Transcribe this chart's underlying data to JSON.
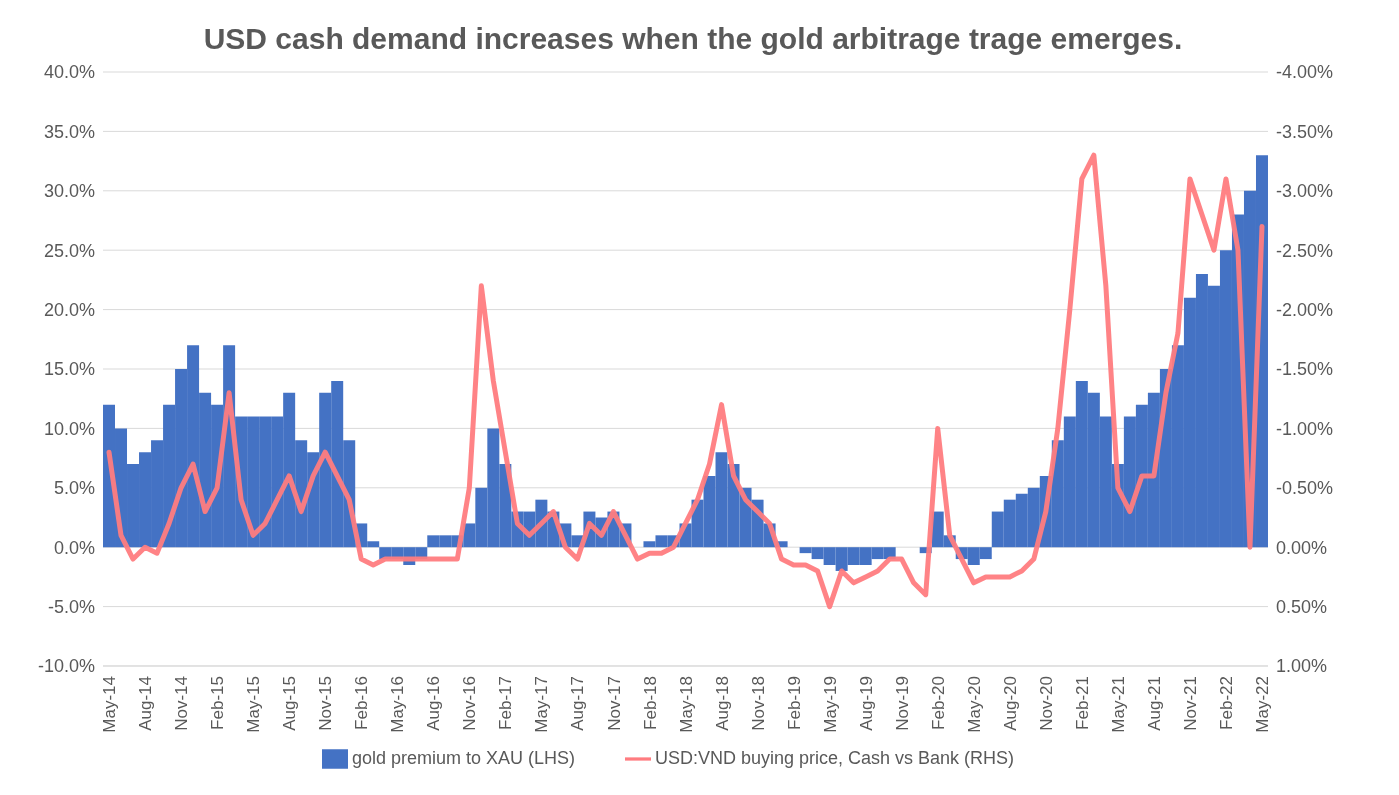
{
  "chart_data": {
    "type": "bar",
    "title": "USD cash demand increases when the gold arbitrage trage emerges.",
    "categories": [
      "May-14",
      null,
      null,
      "Aug-14",
      null,
      null,
      "Nov-14",
      null,
      null,
      "Feb-15",
      null,
      null,
      "May-15",
      null,
      null,
      "Aug-15",
      null,
      null,
      "Nov-15",
      null,
      null,
      "Feb-16",
      null,
      null,
      "May-16",
      null,
      null,
      "Aug-16",
      null,
      null,
      "Nov-16",
      null,
      null,
      "Feb-17",
      null,
      null,
      "May-17",
      null,
      null,
      "Aug-17",
      null,
      null,
      "Nov-17",
      null,
      null,
      "Feb-18",
      null,
      null,
      "May-18",
      null,
      null,
      "Aug-18",
      null,
      null,
      "Nov-18",
      null,
      null,
      "Feb-19",
      null,
      null,
      "May-19",
      null,
      null,
      "Aug-19",
      null,
      null,
      "Nov-19",
      null,
      null,
      "Feb-20",
      null,
      null,
      "May-20",
      null,
      null,
      "Aug-20",
      null,
      null,
      "Nov-20",
      null,
      null,
      "Feb-21",
      null,
      null,
      "May-21",
      null,
      null,
      "Aug-21",
      null,
      null,
      "Nov-21",
      null,
      null,
      "Feb-22",
      null,
      null,
      "May-22"
    ],
    "series": [
      {
        "name": "gold premium to XAU (LHS)",
        "color": "#4472c4",
        "values": [
          12,
          10,
          7,
          8,
          9,
          12,
          15,
          17,
          13,
          12,
          17,
          11,
          11,
          11,
          11,
          13,
          9,
          8,
          13,
          14,
          9,
          2,
          0.5,
          -1,
          -1,
          -1.5,
          -1,
          1,
          1,
          1,
          2,
          5,
          10,
          7,
          3,
          3,
          4,
          3,
          2,
          1,
          3,
          2.5,
          3,
          2,
          0,
          0.5,
          1,
          1,
          2,
          4,
          6,
          8,
          7,
          5,
          4,
          2,
          0.5,
          0,
          -0.5,
          -1,
          -1.5,
          -2,
          -1.5,
          -1.5,
          -1,
          -1,
          0,
          0,
          -0.5,
          3,
          1,
          -1,
          -1.5,
          -1,
          3,
          4,
          4.5,
          5,
          6,
          9,
          11,
          14,
          13,
          11,
          7,
          11,
          12,
          13,
          15,
          17,
          21,
          23,
          22,
          25,
          28,
          30,
          33
        ]
      },
      {
        "name": "USD:VND buying price, Cash vs Bank (RHS)",
        "type": "line",
        "axis": "y2",
        "color": "#ff7c80",
        "values": [
          -0.8,
          -0.1,
          0.1,
          0,
          0.05,
          -0.2,
          -0.5,
          -0.7,
          -0.3,
          -0.5,
          -1.3,
          -0.4,
          -0.1,
          -0.2,
          -0.4,
          -0.6,
          -0.3,
          -0.6,
          -0.8,
          -0.6,
          -0.4,
          0.1,
          0.15,
          0.1,
          0.1,
          0.1,
          0.1,
          0.1,
          0.1,
          0.1,
          -0.5,
          -2.2,
          -1.4,
          -0.8,
          -0.2,
          -0.1,
          -0.2,
          -0.3,
          0,
          0.1,
          -0.2,
          -0.1,
          -0.3,
          -0.1,
          0.1,
          0.05,
          0.05,
          0,
          -0.2,
          -0.4,
          -0.7,
          -1.2,
          -0.6,
          -0.4,
          -0.3,
          -0.2,
          0.1,
          0.15,
          0.15,
          0.2,
          0.5,
          0.2,
          0.3,
          0.25,
          0.2,
          0.1,
          0.1,
          0.3,
          0.4,
          -1,
          -0.1,
          0.1,
          0.3,
          0.25,
          0.25,
          0.25,
          0.2,
          0.1,
          -0.3,
          -1,
          -2,
          -3.1,
          -3.3,
          -2.2,
          -0.5,
          -0.3,
          -0.6,
          -0.6,
          -1.3,
          -1.8,
          -3.1,
          -2.8,
          -2.5,
          -3.1,
          -2.5,
          0,
          -2.7
        ]
      }
    ],
    "ylim": [
      -10,
      40
    ],
    "yticks": [
      {
        "value": -10,
        "label": "-10.0%"
      },
      {
        "value": -5,
        "label": "-5.0%"
      },
      {
        "value": 0,
        "label": "0.0%"
      },
      {
        "value": 5,
        "label": "5.0%"
      },
      {
        "value": 10,
        "label": "10.0%"
      },
      {
        "value": 15,
        "label": "15.0%"
      },
      {
        "value": 20,
        "label": "20.0%"
      },
      {
        "value": 25,
        "label": "25.0%"
      },
      {
        "value": 30,
        "label": "30.0%"
      },
      {
        "value": 35,
        "label": "35.0%"
      },
      {
        "value": 40,
        "label": "40.0%"
      }
    ],
    "y2lim": [
      1,
      -4
    ],
    "y2ticks": [
      {
        "value": 1,
        "label": "1.00%"
      },
      {
        "value": 0.5,
        "label": "0.50%"
      },
      {
        "value": 0,
        "label": "0.00%"
      },
      {
        "value": -0.5,
        "label": "-0.50%"
      },
      {
        "value": -1,
        "label": "-1.00%"
      },
      {
        "value": -1.5,
        "label": "-1.50%"
      },
      {
        "value": -2,
        "label": "-2.00%"
      },
      {
        "value": -2.5,
        "label": "-2.50%"
      },
      {
        "value": -3,
        "label": "-3.00%"
      },
      {
        "value": -3.5,
        "label": "-3.50%"
      },
      {
        "value": -4,
        "label": "-4.00%"
      }
    ],
    "grid": "y",
    "legend": "bottom",
    "marker": "none",
    "line_style": "solid"
  }
}
